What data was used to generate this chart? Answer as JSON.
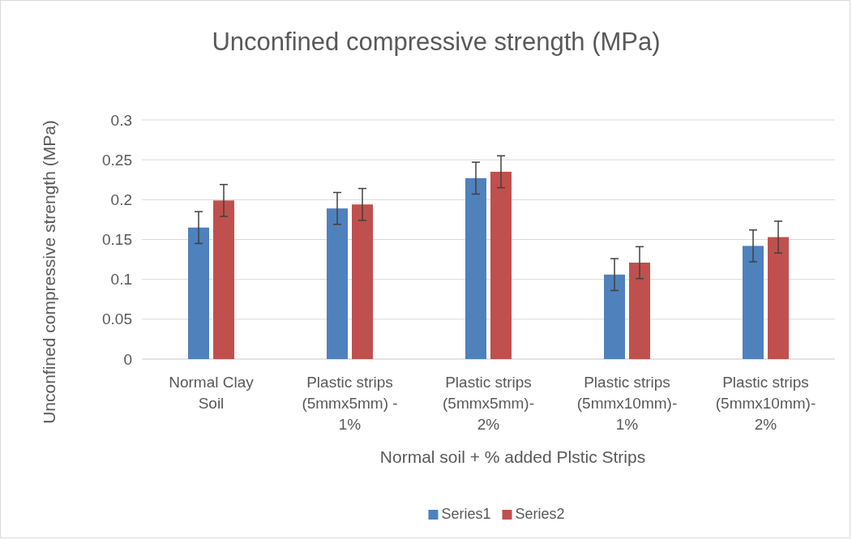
{
  "chart_data": {
    "type": "bar",
    "title": "Unconfined compressive strength (MPa)",
    "xlabel": "Normal soil + % added Plstic Strips",
    "ylabel": "Unconfined compressive strength  (MPa)",
    "categories": [
      "Normal Clay Soil",
      "Plastic strips (5mmx5mm) - 1%",
      "Plastic strips (5mmx5mm)- 2%",
      "Plastic strips (5mmx10mm)- 1%",
      "Plastic strips (5mmx10mm)- 2%"
    ],
    "series": [
      {
        "name": "Series1",
        "color": "#4f81bd",
        "values": [
          0.165,
          0.189,
          0.227,
          0.106,
          0.142
        ],
        "errors": [
          0.02,
          0.02,
          0.02,
          0.02,
          0.02
        ]
      },
      {
        "name": "Series2",
        "color": "#c0504d",
        "values": [
          0.199,
          0.194,
          0.235,
          0.121,
          0.153
        ],
        "errors": [
          0.02,
          0.02,
          0.02,
          0.02,
          0.02
        ]
      }
    ],
    "ylim": [
      0,
      0.3
    ],
    "yticks": [
      0,
      0.05,
      0.1,
      0.15,
      0.2,
      0.25,
      0.3
    ],
    "grid": "y",
    "legend": "bottom"
  }
}
